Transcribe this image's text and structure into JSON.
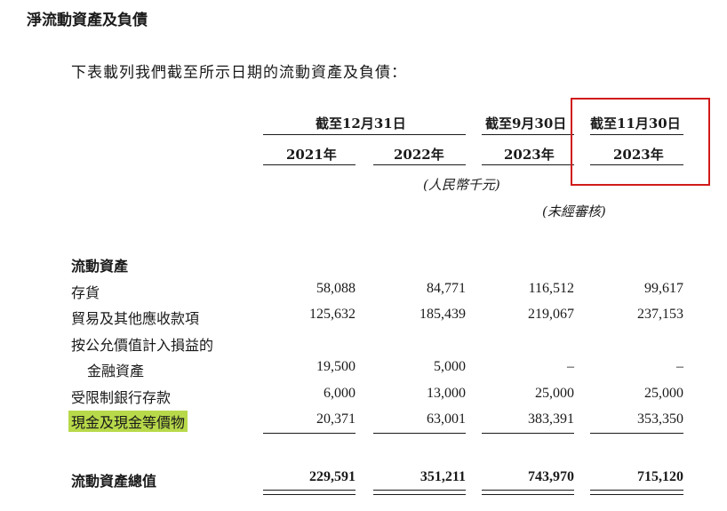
{
  "title": "淨流動資產及負債",
  "intro": "下表載列我們截至所示日期的流動資產及負債：",
  "headers": {
    "group_dec31": "截至12月31日",
    "group_sep30": "截至9月30日",
    "group_nov30": "截至11月30日",
    "years": [
      "2021年",
      "2022年",
      "2023年",
      "2023年"
    ],
    "unit": "(人民幣千元)",
    "unaudited": "(未經審核)"
  },
  "section_label": "流動資產",
  "rows": [
    {
      "label": "存貨",
      "values": [
        "58,088",
        "84,771",
        "116,512",
        "99,617"
      ]
    },
    {
      "label": "貿易及其他應收款項",
      "values": [
        "125,632",
        "185,439",
        "219,067",
        "237,153"
      ]
    },
    {
      "label": "按公允價值計入損益的",
      "values": []
    },
    {
      "label": "金融資產",
      "values": [
        "19,500",
        "5,000",
        "–",
        "–"
      ]
    },
    {
      "label": "受限制銀行存款",
      "values": [
        "6,000",
        "13,000",
        "25,000",
        "25,000"
      ]
    },
    {
      "label": "現金及現金等價物",
      "values": [
        "20,371",
        "63,001",
        "383,391",
        "353,350"
      ]
    }
  ],
  "total": {
    "label": "流動資產總值",
    "values": [
      "229,591",
      "351,211",
      "743,970",
      "715,120"
    ]
  },
  "colors": {
    "highlight": "#b8d94a",
    "annotation_box": "#d11a1a"
  }
}
